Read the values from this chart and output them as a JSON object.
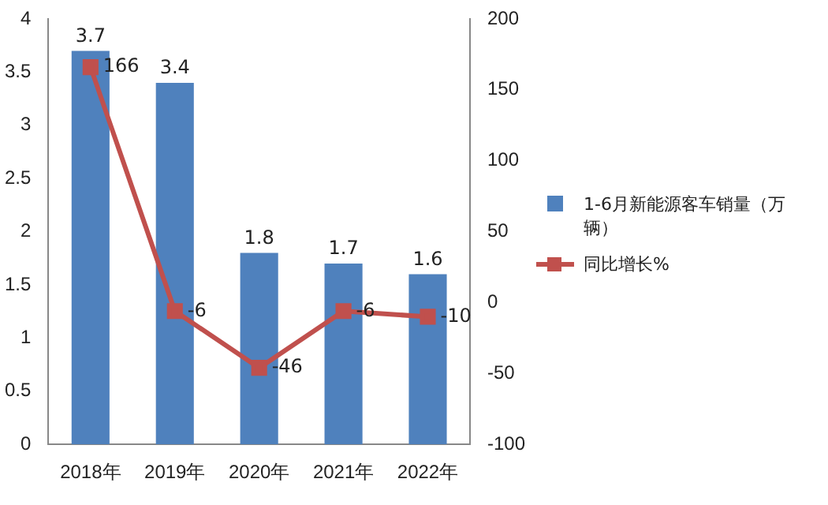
{
  "chart_data": {
    "type": "bar",
    "categories": [
      "2018年",
      "2019年",
      "2020年",
      "2021年",
      "2022年"
    ],
    "series": [
      {
        "name": "1-6月新能源客车销量（万辆）",
        "color": "#4f81bd",
        "values": [
          3.7,
          3.4,
          1.8,
          1.7,
          1.6
        ]
      },
      {
        "name": "同比增长%",
        "type": "line",
        "axis": "y2",
        "color": "#c0504d",
        "marker": "square",
        "values": [
          166,
          -6,
          -46,
          -6,
          -10
        ]
      }
    ],
    "ylim": [
      0,
      4
    ],
    "yticks": [
      0,
      0.5,
      1,
      1.5,
      2,
      2.5,
      3,
      3.5,
      4
    ],
    "y2lim": [
      -100,
      200
    ],
    "y2ticks": [
      -100,
      -50,
      0,
      50,
      100,
      150,
      200
    ],
    "grid": false,
    "legend": "right",
    "data_labels": true
  }
}
